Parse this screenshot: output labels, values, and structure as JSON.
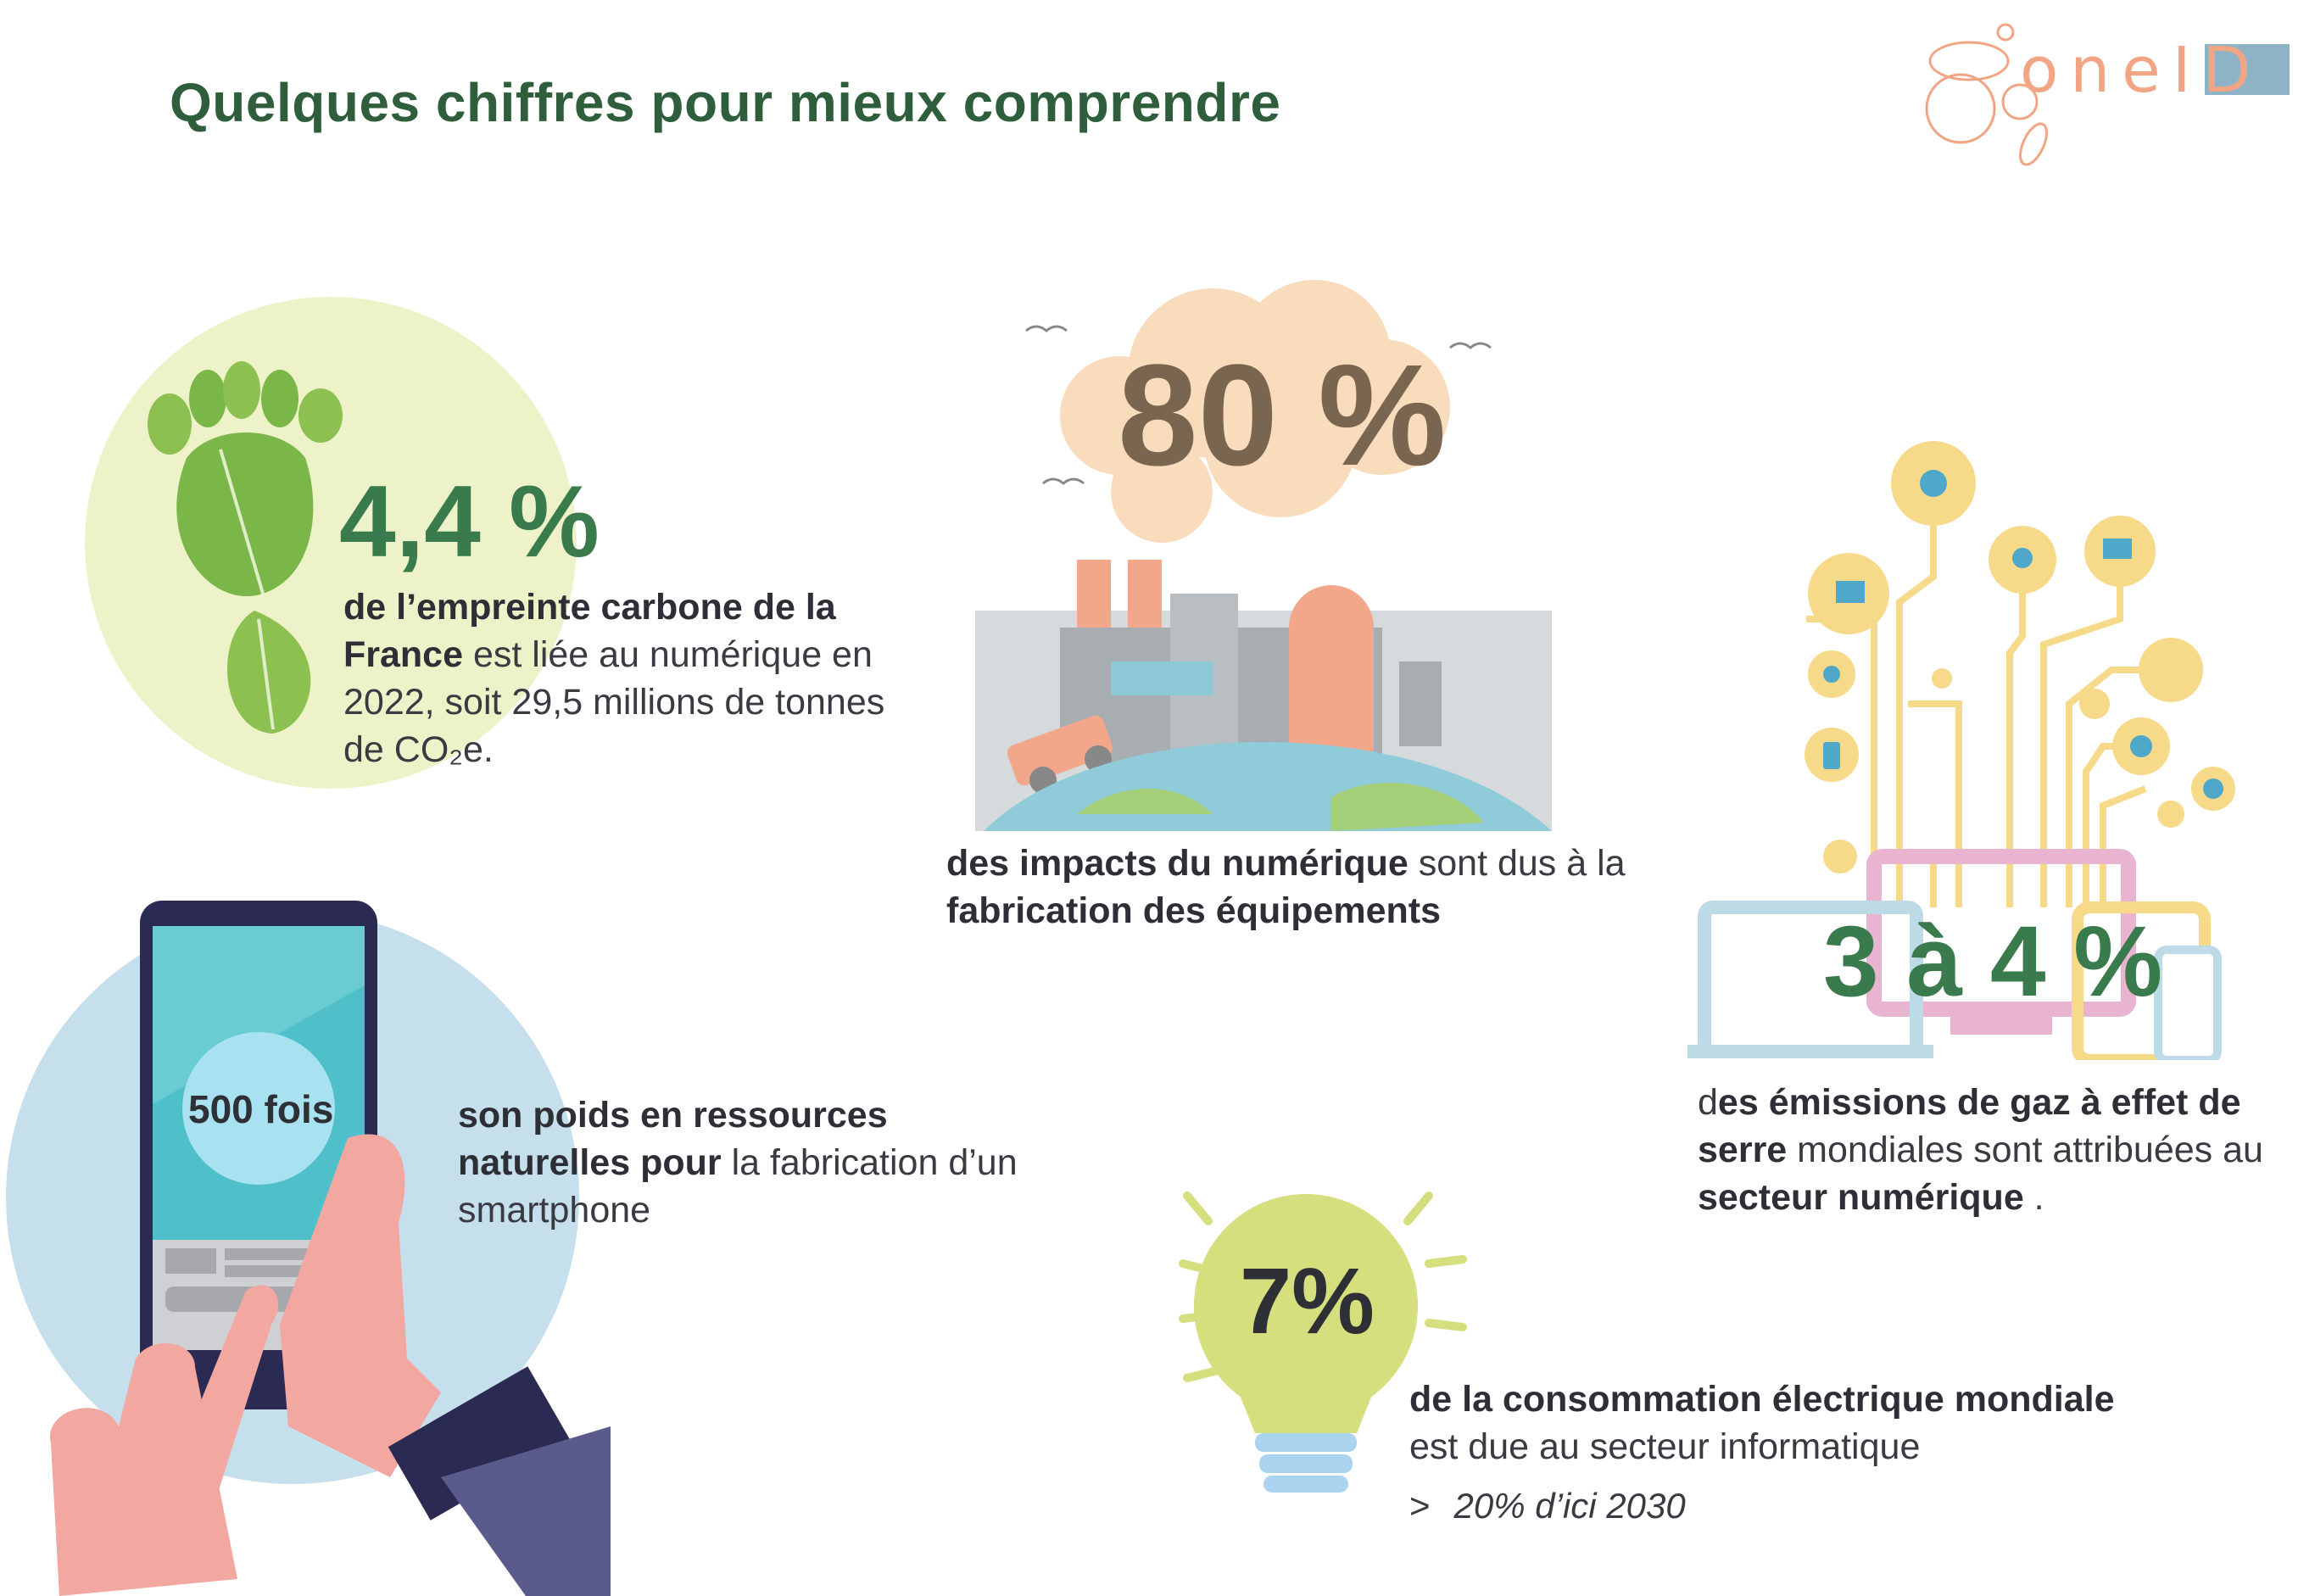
{
  "page": {
    "title": "Quelques chiffres pour mieux comprendre",
    "logo_text": "oneID"
  },
  "stats": [
    {
      "value": "4,4 %",
      "bold_lead": "de l’empreinte carbone de la France",
      "rest": " est liée au numérique en 2022, soit 29,5 millions de tonnes de CO₂e.",
      "color": "#3a7b4d"
    },
    {
      "value": "80 %",
      "bold1": "des impacts du numérique",
      "mid": " sont dus à la ",
      "bold2": "fabrication des équipements",
      "color": "#7a6550"
    },
    {
      "value": "3 à 4 %",
      "lead": "d",
      "bold1": "es émissions de gaz à effet de serre",
      "mid": " mondiales sont attribuées au ",
      "bold2": "secteur numérique",
      "tail": " .",
      "color": "#3a7b4d"
    },
    {
      "value": "500 fois",
      "bold1": "son poids en ressources naturelles pour",
      "rest": " la fabrication d’un smartphone",
      "color": "#2f2f36"
    },
    {
      "value": "7%",
      "bold1": "de la consommation électrique mondiale",
      "rest": "est due au secteur informatique",
      "note_marker": ">",
      "note": "20% d’ici 2030",
      "color": "#2f2f36"
    }
  ],
  "colors": {
    "title": "#2f5e3c",
    "accent_green": "#3a7b4d",
    "light_green_circle": "#eef2c8",
    "light_blue_circle": "#c6dfec",
    "cloud": "#f9dcbc",
    "bulb": "#d5df7e",
    "icon_yellow": "#f7d98a",
    "logo_orange": "#f2a584",
    "logo_blue": "#8fb3c6"
  },
  "icons": [
    "footprint-leaf-icon",
    "factory-earth-icon",
    "devices-network-icon",
    "smartphone-hand-icon",
    "lightbulb-icon"
  ]
}
